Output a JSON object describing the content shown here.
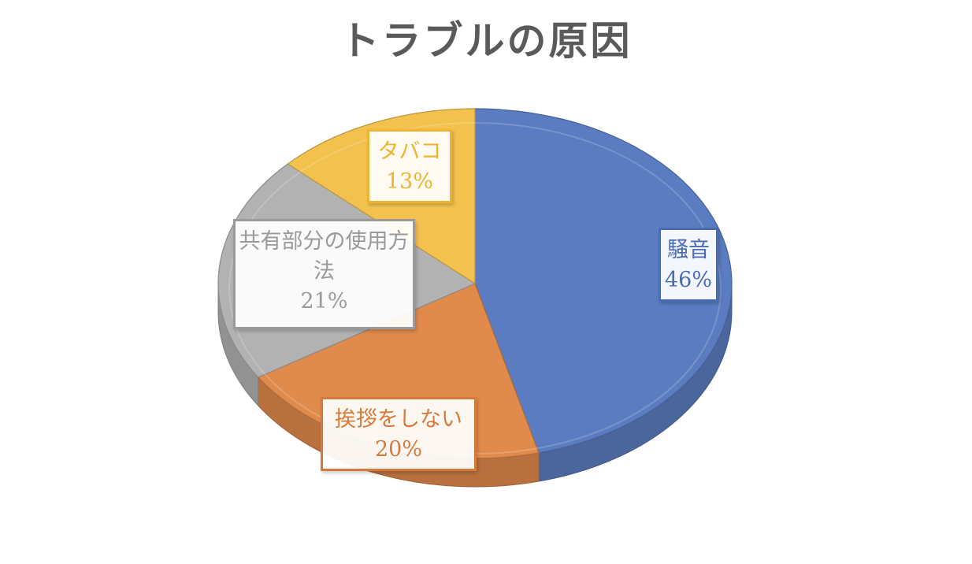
{
  "chart_data": {
    "type": "pie",
    "title": "トラブルの原因",
    "legend": "none",
    "slices": [
      {
        "label": "騒音",
        "value": 46,
        "value_label": "46%",
        "color": "#5b7cc0",
        "label_color": "#4a6bb6"
      },
      {
        "label": "挨拶をしない",
        "value": 20,
        "value_label": "20%",
        "color": "#e08a4c",
        "label_color": "#d57a3a"
      },
      {
        "label": "共有部分の使用方法",
        "value": 21,
        "value_label": "21%",
        "color": "#b2b2b2",
        "label_color": "#9a9a9a"
      },
      {
        "label": "タバコ",
        "value": 13,
        "value_label": "13%",
        "color": "#f3c14e",
        "label_color": "#eeb32f"
      }
    ]
  }
}
